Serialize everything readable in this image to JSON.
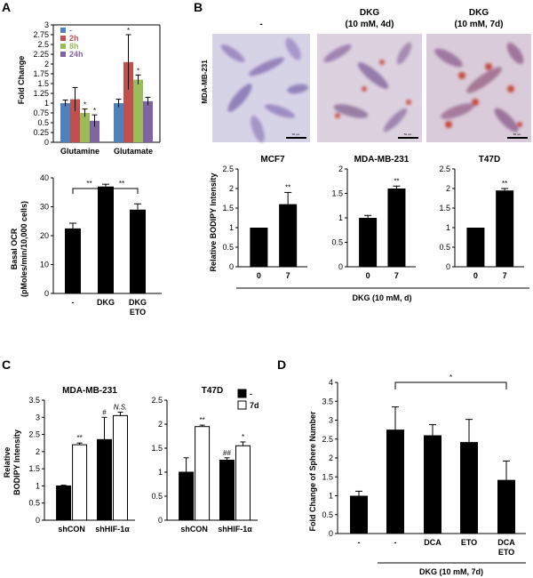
{
  "panels": {
    "a": "A",
    "b": "B",
    "c": "C",
    "d": "D"
  },
  "chart_data": [
    {
      "id": "A1",
      "type": "bar",
      "ylabel": "Fold Change",
      "ylim": [
        0,
        3
      ],
      "yticks": [
        "0",
        "0.25",
        "0.5",
        "0.75",
        "1",
        "1.25",
        "1.5",
        "1.75",
        "2",
        "2.25",
        "2.5",
        "2.75",
        "3"
      ],
      "categories": [
        "Glutamine",
        "Glutamate"
      ],
      "legend": [
        "-",
        "2h",
        "8h",
        "24h"
      ],
      "colors": [
        "#4f81bd",
        "#c0504d",
        "#9bbb59",
        "#8064a2"
      ],
      "series": [
        {
          "name": "-",
          "values": [
            1.0,
            1.0
          ],
          "errors": [
            0.08,
            0.1
          ]
        },
        {
          "name": "2h",
          "values": [
            1.1,
            2.05
          ],
          "errors": [
            0.3,
            0.7
          ]
        },
        {
          "name": "8h",
          "values": [
            0.75,
            1.6
          ],
          "errors": [
            0.1,
            0.12
          ]
        },
        {
          "name": "24h",
          "values": [
            0.55,
            1.05
          ],
          "errors": [
            0.15,
            0.1
          ]
        }
      ],
      "annotations": [
        {
          "series": 2,
          "category": 0,
          "text": "*"
        },
        {
          "series": 3,
          "category": 0,
          "text": "*"
        },
        {
          "series": 1,
          "category": 1,
          "text": "*"
        },
        {
          "series": 2,
          "category": 1,
          "text": "*"
        }
      ]
    },
    {
      "id": "A2",
      "type": "bar",
      "ylabel_line1": "Basal OCR",
      "ylabel_line2": "(pMoles/min/10,000 cells)",
      "ylim": [
        0,
        40
      ],
      "yticks": [
        "0",
        "10",
        "20",
        "30",
        "40"
      ],
      "categories": [
        "-",
        "DKG",
        "DKG"
      ],
      "categories_line2": [
        "",
        "",
        "ETO"
      ],
      "values": [
        22.5,
        37,
        29
      ],
      "errors": [
        1.8,
        0.8,
        2
      ],
      "significance": [
        {
          "from": 0,
          "to": 1,
          "text": "**"
        },
        {
          "from": 1,
          "to": 2,
          "text": "**"
        }
      ]
    },
    {
      "id": "B1",
      "type": "bar",
      "title": "MCF7",
      "ylabel": "Relative BODIPY Intensity",
      "ylim": [
        0,
        2.5
      ],
      "yticks": [
        "0",
        "0.5",
        "1",
        "1.5",
        "2",
        "2.5"
      ],
      "categories": [
        "0",
        "7"
      ],
      "values": [
        1.0,
        1.6
      ],
      "errors": [
        0,
        0.3
      ],
      "annotations": [
        "",
        "**"
      ]
    },
    {
      "id": "B2",
      "type": "bar",
      "title": "MDA-MB-231",
      "ylim": [
        0,
        2
      ],
      "yticks": [
        "0",
        "0.5",
        "1",
        "1.5",
        "2"
      ],
      "categories": [
        "0",
        "7"
      ],
      "values": [
        1.0,
        1.6
      ],
      "errors": [
        0.05,
        0.05
      ],
      "annotations": [
        "",
        "**"
      ]
    },
    {
      "id": "B3",
      "type": "bar",
      "title": "T47D",
      "ylim": [
        0,
        2.5
      ],
      "yticks": [
        "0",
        "0.5",
        "1",
        "1.5",
        "2",
        "2.5"
      ],
      "categories": [
        "0",
        "7"
      ],
      "values": [
        1.0,
        1.95
      ],
      "errors": [
        0,
        0.05
      ],
      "annotations": [
        "",
        "**"
      ]
    },
    {
      "id": "C1",
      "type": "bar",
      "title": "MDA-MB-231",
      "ylabel_line1": "Relative",
      "ylabel_line2": "BODIPY Intensity",
      "ylim": [
        0,
        3.5
      ],
      "yticks": [
        "0",
        "0.5",
        "1",
        "1.5",
        "2",
        "2.5",
        "3",
        "3.5"
      ],
      "categories": [
        "shCON",
        "shHIF-1α"
      ],
      "series": [
        {
          "name": "-",
          "values": [
            1.0,
            2.35
          ],
          "errors": [
            0.02,
            0.65
          ]
        },
        {
          "name": "7d",
          "values": [
            2.2,
            3.05
          ],
          "errors": [
            0.05,
            0.1
          ]
        }
      ],
      "annotations": [
        {
          "series": 1,
          "category": 0,
          "text": "**"
        },
        {
          "series": 0,
          "category": 1,
          "text": "#"
        },
        {
          "series": 1,
          "category": 1,
          "text": "N.S."
        }
      ]
    },
    {
      "id": "C2",
      "type": "bar",
      "title": "T47D",
      "ylim": [
        0,
        2.5
      ],
      "yticks": [
        "0",
        "0.5",
        "1",
        "1.5",
        "2",
        "2.5"
      ],
      "categories": [
        "shCON",
        "shHIF-1α"
      ],
      "legend": [
        "-",
        "7d"
      ],
      "series": [
        {
          "name": "-",
          "values": [
            1.0,
            1.25
          ],
          "errors": [
            0.3,
            0.05
          ]
        },
        {
          "name": "7d",
          "values": [
            1.95,
            1.55
          ],
          "errors": [
            0.03,
            0.08
          ]
        }
      ],
      "annotations": [
        {
          "series": 1,
          "category": 0,
          "text": "**"
        },
        {
          "series": 0,
          "category": 1,
          "text": "##"
        },
        {
          "series": 1,
          "category": 1,
          "text": "*"
        }
      ]
    },
    {
      "id": "D",
      "type": "bar",
      "ylabel": "Fold Change of Sphere Number",
      "ylim": [
        0,
        4
      ],
      "yticks": [
        "0",
        "0.5",
        "1",
        "1.5",
        "2",
        "2.5",
        "3",
        "3.5",
        "4"
      ],
      "categories": [
        "-",
        "-",
        "DCA",
        "ETO",
        "DCA"
      ],
      "categories_line2": [
        "",
        "",
        "",
        "",
        "ETO"
      ],
      "values": [
        1.0,
        2.75,
        2.6,
        2.42,
        1.42
      ],
      "errors": [
        0.12,
        0.6,
        0.28,
        0.6,
        0.5
      ],
      "significance": [
        {
          "from": 1,
          "to": 4,
          "text": "*"
        }
      ]
    }
  ],
  "panel_b": {
    "images": {
      "cell_line_label": "MDA-MB-231",
      "column_titles": [
        {
          "line1": "-",
          "line2": ""
        },
        {
          "line1": "DKG",
          "line2": "(10 mM, 4d)"
        },
        {
          "line1": "DKG",
          "line2": "(10 mM, 7d)"
        }
      ],
      "scale_bar_label": "50 µm"
    },
    "xaxis_label": "DKG (10 mM, d)"
  },
  "panel_d": {
    "xaxis_label": "DKG (10 mM, 7d)"
  }
}
